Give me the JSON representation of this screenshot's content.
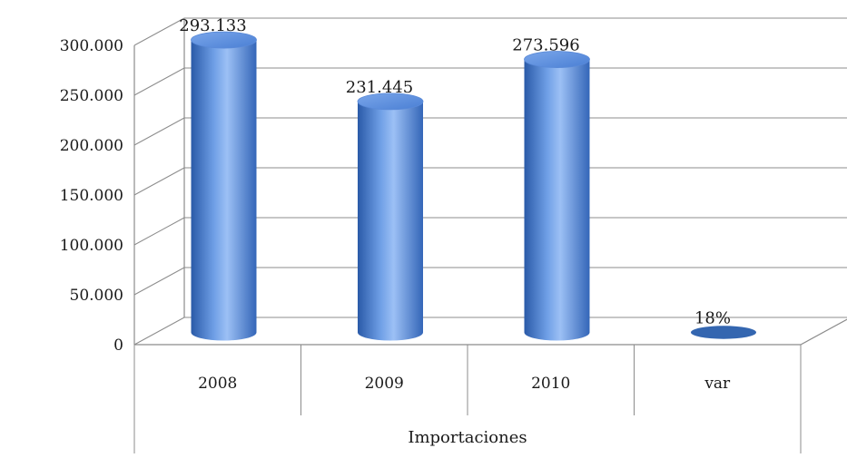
{
  "chart_data": {
    "type": "bar",
    "style": "3d-cylinder",
    "title": "",
    "group_label": "Importaciones",
    "categories": [
      "2008",
      "2009",
      "2010",
      "var"
    ],
    "values": [
      293133,
      231445,
      273596,
      18
    ],
    "data_labels": [
      "293.133",
      "231.445",
      "273.596",
      "18%"
    ],
    "y_ticks": [
      "0",
      "50.000",
      "100.000",
      "150.000",
      "200.000",
      "250.000",
      "300.000"
    ],
    "ylim": [
      0,
      300000
    ],
    "y_step": 50000,
    "grid": true,
    "legend": "none",
    "colors": {
      "bar": "#4a7fd4",
      "bar_light": "#9cc0f5",
      "bar_dark": "#2a5aa8",
      "grid": "#8c8c8c"
    }
  }
}
